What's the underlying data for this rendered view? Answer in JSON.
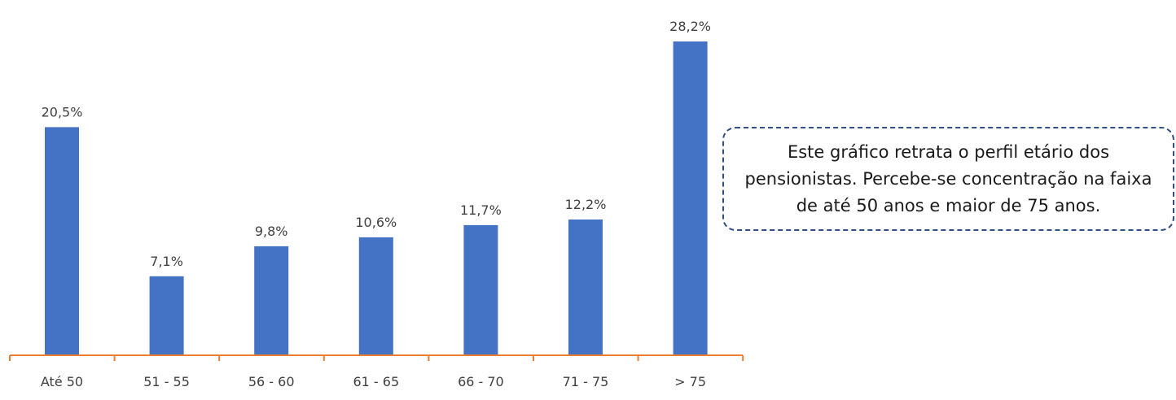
{
  "chart_data": {
    "type": "bar",
    "categories": [
      "Até 50",
      "51 - 55",
      "56 - 60",
      "61 - 65",
      "66 - 70",
      "71 - 75",
      "> 75"
    ],
    "values": [
      20.5,
      7.1,
      9.8,
      10.6,
      11.7,
      12.2,
      28.2
    ],
    "data_labels": [
      "20,5%",
      "7,1%",
      "9,8%",
      "10,6%",
      "11,7%",
      "12,2%",
      "28,2%"
    ],
    "unit": "%",
    "ylim": [
      0,
      30
    ],
    "grid": false,
    "legend": "none",
    "bar_color": "#4472c4",
    "axis_color": "#ed7d31"
  },
  "callout": {
    "text": "Este gráfico retrata o perfil etário dos pensionistas. Percebe-se concentração na faixa de até 50 anos e maior de 75 anos."
  }
}
